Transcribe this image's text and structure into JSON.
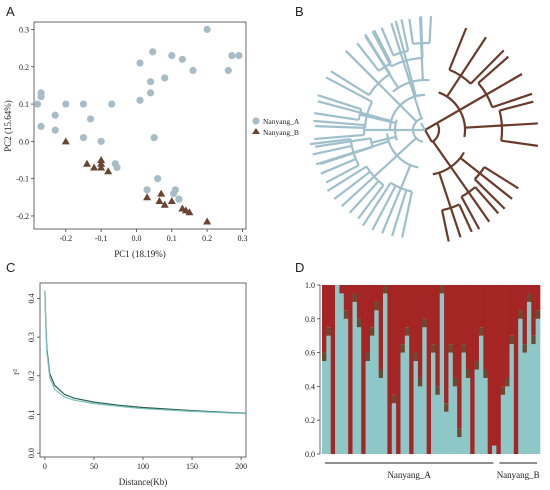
{
  "colors": {
    "nanyang_a": "#a8bcc8",
    "nanyang_b": "#6b4331",
    "tree_a": "#9fbfcc",
    "tree_b": "#6b3a2a",
    "decay_green": "#2f5f4a",
    "decay_teal": "#78c4c4",
    "struct_red": "#a52424",
    "struct_teal": "#8ec7c7",
    "struct_brown": "#6b4a31"
  },
  "panels": {
    "A": {
      "letter": "A"
    },
    "B": {
      "letter": "B"
    },
    "C": {
      "letter": "C"
    },
    "D": {
      "letter": "D"
    }
  },
  "chart_data": [
    {
      "type": "scatter",
      "panel": "A",
      "xlabel": "PC1 (18.19%)",
      "ylabel": "PC2 (15.64%)",
      "xlim": [
        -0.29,
        0.31
      ],
      "ylim": [
        -0.235,
        0.32
      ],
      "xticks": [
        "-0.2",
        "-0.1",
        "0.0",
        "0.1",
        "0.2",
        "0.3"
      ],
      "xtick_values": [
        -0.2,
        -0.1,
        0.0,
        0.1,
        0.2,
        0.3
      ],
      "yticks": [
        "0.3",
        "0.2",
        "0.1",
        "0.0",
        "-0.1",
        "-0.2"
      ],
      "ytick_values": [
        0.3,
        0.2,
        0.1,
        0.0,
        -0.1,
        -0.2
      ],
      "legend_position": "right",
      "series": [
        {
          "name": "Nanyang_A",
          "marker": "circle",
          "points": [
            [
              0.2,
              0.3
            ],
            [
              0.046,
              0.24
            ],
            [
              0.1,
              0.23
            ],
            [
              0.27,
              0.23
            ],
            [
              0.29,
              0.23
            ],
            [
              0.13,
              0.22
            ],
            [
              0.01,
              0.21
            ],
            [
              0.16,
              0.19
            ],
            [
              0.26,
              0.19
            ],
            [
              0.08,
              0.17
            ],
            [
              0.04,
              0.16
            ],
            [
              -0.27,
              0.13
            ],
            [
              -0.27,
              0.12
            ],
            [
              -0.28,
              0.1
            ],
            [
              -0.2,
              0.1
            ],
            [
              -0.15,
              0.1
            ],
            [
              -0.07,
              0.1
            ],
            [
              0.01,
              0.11
            ],
            [
              0.04,
              0.13
            ],
            [
              -0.23,
              0.07
            ],
            [
              -0.13,
              0.06
            ],
            [
              -0.27,
              0.04
            ],
            [
              -0.23,
              0.03
            ],
            [
              -0.1,
              0.0
            ],
            [
              -0.15,
              0.01
            ],
            [
              0.05,
              0.01
            ],
            [
              -0.06,
              -0.06
            ],
            [
              -0.055,
              -0.07
            ],
            [
              0.06,
              -0.1
            ],
            [
              0.03,
              -0.13
            ],
            [
              0.11,
              -0.13
            ],
            [
              0.105,
              -0.14
            ],
            [
              0.12,
              -0.155
            ]
          ]
        },
        {
          "name": "Nanyang_B",
          "marker": "triangle",
          "points": [
            [
              -0.2,
              0.0
            ],
            [
              -0.14,
              -0.06
            ],
            [
              -0.1,
              -0.05
            ],
            [
              -0.1,
              -0.06
            ],
            [
              -0.1,
              -0.07
            ],
            [
              -0.12,
              -0.07
            ],
            [
              -0.08,
              -0.08
            ],
            [
              0.07,
              -0.14
            ],
            [
              0.065,
              -0.16
            ],
            [
              0.1,
              -0.16
            ],
            [
              0.08,
              -0.17
            ],
            [
              0.03,
              -0.15
            ],
            [
              0.13,
              -0.18
            ],
            [
              0.14,
              -0.185
            ],
            [
              0.15,
              -0.19
            ],
            [
              0.2,
              -0.215
            ]
          ]
        }
      ]
    },
    {
      "type": "line",
      "panel": "C",
      "xlabel": "Distance(Kb)",
      "ylabel": "r²",
      "xlim": [
        -5,
        205
      ],
      "ylim": [
        -0.01,
        0.44
      ],
      "xticks": [
        "0",
        "50",
        "100",
        "150",
        "200"
      ],
      "xtick_values": [
        0,
        50,
        100,
        150,
        200
      ],
      "yticks": [
        "0.0",
        "0.1",
        "0.2",
        "0.3",
        "0.4"
      ],
      "ytick_values": [
        0.0,
        0.1,
        0.2,
        0.3,
        0.4
      ],
      "series": [
        {
          "x": [
            0,
            1,
            2,
            5,
            10,
            20,
            30,
            50,
            75,
            100,
            150,
            205
          ],
          "values": [
            0.42,
            0.33,
            0.27,
            0.205,
            0.175,
            0.152,
            0.142,
            0.132,
            0.124,
            0.118,
            0.11,
            0.103
          ]
        },
        {
          "x": [
            0,
            1,
            2,
            5,
            10,
            20,
            30,
            50,
            75,
            100,
            150,
            205
          ],
          "values": [
            0.42,
            0.32,
            0.26,
            0.195,
            0.165,
            0.145,
            0.137,
            0.128,
            0.121,
            0.115,
            0.108,
            0.102
          ]
        }
      ]
    },
    {
      "type": "bar",
      "panel": "D",
      "stacked": true,
      "ylim": [
        0,
        1
      ],
      "yticks": [
        "0.0",
        "0.2",
        "0.4",
        "0.6",
        "0.8",
        "1.0"
      ],
      "ytick_values": [
        0,
        0.2,
        0.4,
        0.6,
        0.8,
        1.0
      ],
      "groups": [
        {
          "label": "Nanyang_A",
          "from": 0,
          "to": 39
        },
        {
          "label": "Nanyang_B",
          "from": 40,
          "to": 49
        }
      ],
      "series": [
        {
          "values": [
            0.55,
            0.7,
            0.0,
            1.0,
            0.95,
            0.8,
            0.0,
            0.9,
            0.75,
            0.0,
            0.55,
            0.7,
            0.85,
            0.45,
            0.95,
            0.0,
            0.3,
            0.0,
            0.6,
            0.7,
            0.0,
            0.55,
            0.4,
            0.75,
            0.0,
            0.6,
            0.35,
            0.95,
            0.25,
            0.6,
            0.4,
            0.1,
            0.6,
            0.45,
            0.0,
            0.5,
            0.7,
            0.45,
            0.0,
            0.05,
            0.0,
            0.35,
            0.4,
            0.65,
            0.0,
            0.8,
            0.6,
            0.9,
            0.65,
            0.8
          ]
        },
        {
          "values": [
            0.05,
            0.05,
            0.0,
            0.0,
            0.0,
            0.05,
            0.0,
            0.05,
            0.05,
            0.0,
            0.05,
            0.05,
            0.05,
            0.05,
            0.05,
            0.0,
            0.05,
            0.0,
            0.05,
            0.05,
            0.0,
            0.05,
            0.05,
            0.05,
            0.0,
            0.05,
            0.05,
            0.05,
            0.05,
            0.05,
            0.05,
            0.05,
            0.05,
            0.05,
            0.0,
            0.05,
            0.05,
            0.05,
            0.0,
            0.0,
            0.0,
            0.05,
            0.05,
            0.05,
            0.0,
            0.05,
            0.05,
            0.05,
            0.05,
            0.05
          ]
        },
        {
          "values": [
            0.4,
            0.25,
            1.0,
            0.0,
            0.05,
            0.15,
            1.0,
            0.05,
            0.2,
            1.0,
            0.4,
            0.25,
            0.1,
            0.5,
            0.0,
            1.0,
            0.65,
            1.0,
            0.35,
            0.25,
            1.0,
            0.4,
            0.55,
            0.2,
            1.0,
            0.35,
            0.6,
            0.0,
            0.7,
            0.35,
            0.55,
            0.85,
            0.35,
            0.5,
            1.0,
            0.45,
            0.25,
            0.5,
            1.0,
            0.95,
            1.0,
            0.6,
            0.55,
            0.3,
            1.0,
            0.15,
            0.35,
            0.05,
            0.3,
            0.15
          ]
        }
      ]
    }
  ]
}
